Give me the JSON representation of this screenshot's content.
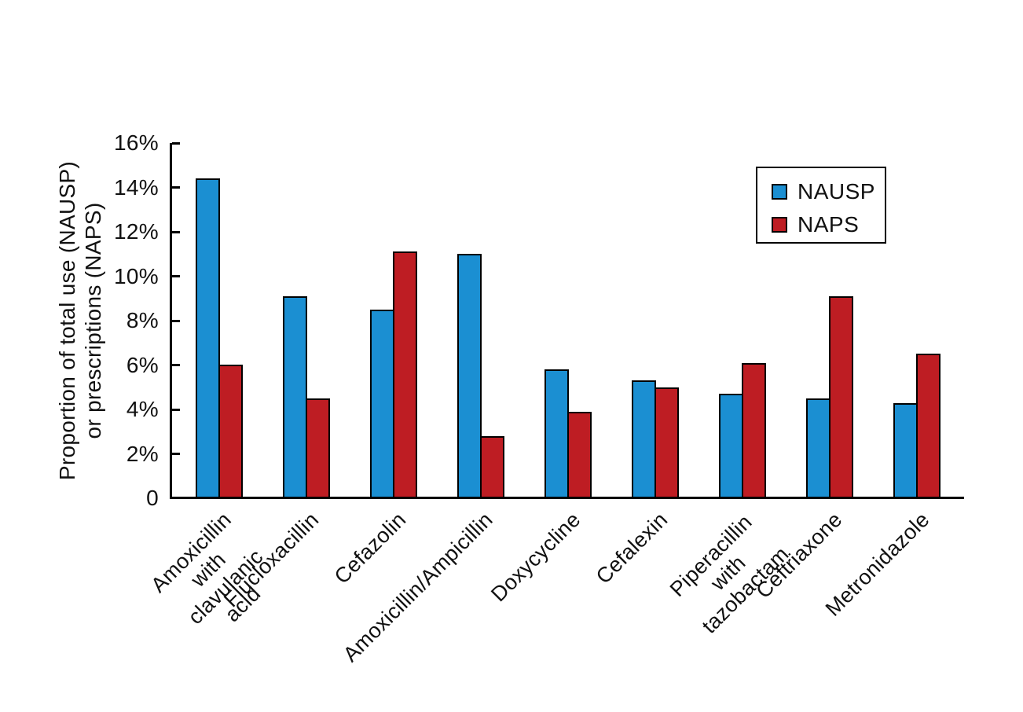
{
  "figure": {
    "background": "#ffffff",
    "text_color": "#111111",
    "axis_color": "#000000"
  },
  "chart_data": {
    "type": "bar",
    "title": "",
    "xlabel": "",
    "ylabel": "Proportion of total use (NAUSP)\nor prescriptions (NAPS)",
    "categories": [
      "Amoxicillin with\nclavulanic acid",
      "Flucloxacillin",
      "Cefazolin",
      "Amoxicillin/Ampicillin",
      "Doxycycline",
      "Cefalexin",
      "Piperacillin with\ntazobactam",
      "Ceftriaxone",
      "Metronidazole"
    ],
    "series": [
      {
        "name": "NAUSP",
        "color": "#1B8FD2",
        "values": [
          14.4,
          9.1,
          8.5,
          11.0,
          5.8,
          5.3,
          4.7,
          4.5,
          4.3
        ]
      },
      {
        "name": "NAPS",
        "color": "#BE1D23",
        "values": [
          6.0,
          4.5,
          11.1,
          2.8,
          3.9,
          5.0,
          6.1,
          9.1,
          6.5
        ]
      }
    ],
    "y_axis": {
      "min": 0,
      "max": 16,
      "tick_step": 2,
      "tick_labels": [
        "0",
        "2%",
        "4%",
        "6%",
        "8%",
        "10%",
        "12%",
        "14%",
        "16%"
      ]
    },
    "legend": {
      "position": "upper-right",
      "entries": [
        "NAUSP",
        "NAPS"
      ]
    },
    "grid": false
  }
}
